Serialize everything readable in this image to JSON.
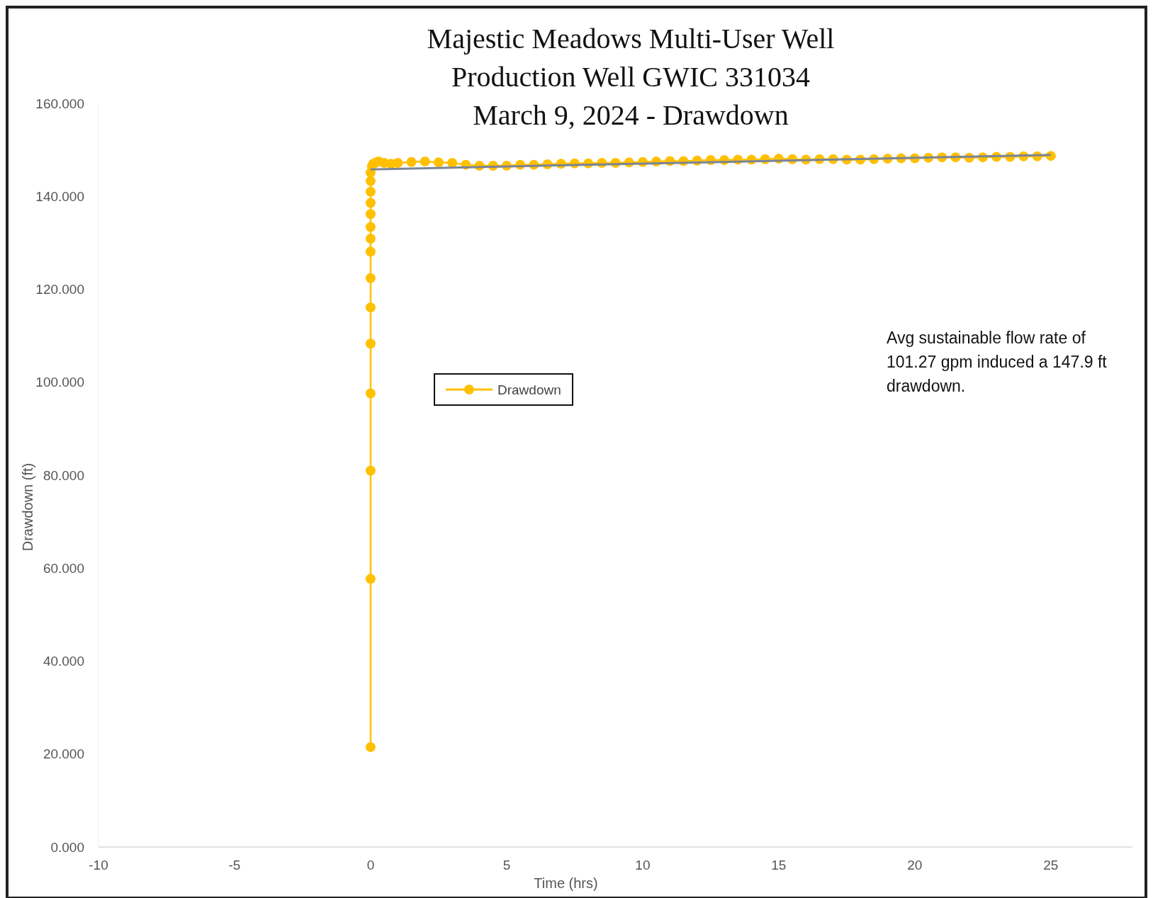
{
  "chart_data": {
    "type": "line",
    "title": "Majestic Meadows Multi-User Well\nProduction Well GWIC 331034\nMarch 9, 2024 - Drawdown",
    "xlabel": "Time (hrs)",
    "ylabel": "Drawdown (ft)",
    "xlim": [
      -10,
      28
    ],
    "ylim": [
      0,
      160
    ],
    "xticks": [
      -10,
      -5,
      0,
      5,
      10,
      15,
      20,
      25
    ],
    "yticks": [
      {
        "value": 0,
        "label": "0.000"
      },
      {
        "value": 20,
        "label": "20.000"
      },
      {
        "value": 40,
        "label": "40.000"
      },
      {
        "value": 60,
        "label": "60.000"
      },
      {
        "value": 80,
        "label": "80.000"
      },
      {
        "value": 100,
        "label": "100.000"
      },
      {
        "value": 120,
        "label": "120.000"
      },
      {
        "value": 140,
        "label": "140.000"
      },
      {
        "value": 160,
        "label": "160.000"
      }
    ],
    "legend": "left",
    "marker": "circle",
    "grid": false,
    "annotations": [
      "Avg sustainable flow rate of 101.27 gpm induced a 147.9 ft drawdown."
    ],
    "series": [
      {
        "name": "Drawdown",
        "color": "#ffc000",
        "x": [
          0,
          0,
          0,
          0,
          0,
          0,
          0,
          0,
          0,
          0,
          0,
          0,
          0,
          0,
          0,
          0.05,
          0.1,
          0.2,
          0.3,
          0.5,
          0.75,
          1,
          1.5,
          2,
          2.5,
          3,
          3.5,
          4,
          4.5,
          5,
          5.5,
          6,
          6.5,
          7,
          7.5,
          8,
          8.5,
          9,
          9.5,
          10,
          10.5,
          11,
          11.5,
          12,
          12.5,
          13,
          13.5,
          14,
          14.5,
          15,
          15.5,
          16,
          16.5,
          17,
          17.5,
          18,
          18.5,
          19,
          19.5,
          20,
          20.5,
          21,
          21.5,
          22,
          22.5,
          23,
          23.5,
          24,
          24.5,
          25
        ],
        "values": [
          21.5,
          57.7,
          81,
          97.6,
          108.3,
          116.1,
          122.4,
          128.1,
          130.9,
          133.4,
          136.2,
          138.6,
          141,
          143.3,
          145.1,
          146.5,
          147,
          147.3,
          147.5,
          147.2,
          147,
          147.2,
          147.4,
          147.5,
          147.3,
          147.2,
          146.8,
          146.6,
          146.6,
          146.6,
          146.8,
          146.8,
          146.9,
          147,
          147.1,
          147.1,
          147.2,
          147.2,
          147.3,
          147.4,
          147.5,
          147.6,
          147.6,
          147.7,
          147.8,
          147.8,
          147.9,
          147.9,
          148,
          148.1,
          148,
          147.9,
          148,
          148,
          147.9,
          147.9,
          148,
          148.1,
          148.2,
          148.2,
          148.3,
          148.4,
          148.4,
          148.3,
          148.4,
          148.5,
          148.5,
          148.6,
          148.6,
          148.7
        ]
      },
      {
        "marker": "none",
        "color": "#7a8499",
        "x": [
          0,
          25
        ],
        "values": [
          145.8,
          148.9
        ]
      }
    ]
  }
}
